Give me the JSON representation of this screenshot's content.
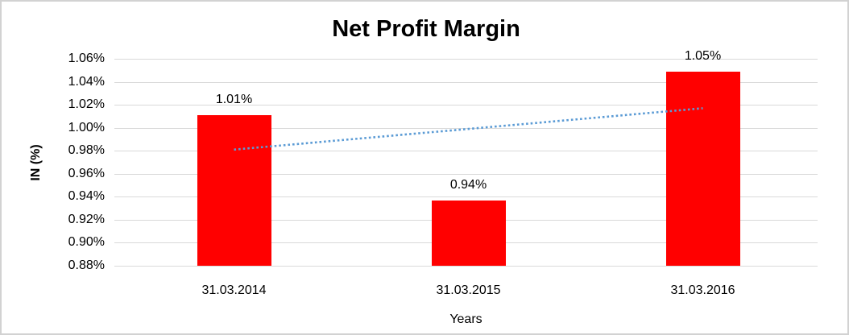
{
  "chart_data": {
    "type": "bar",
    "title": "Net Profit Margin",
    "xlabel": "Years",
    "ylabel": "IN (%)",
    "categories": [
      "31.03.2014",
      "31.03.2015",
      "31.03.2016"
    ],
    "values": [
      1.01,
      0.94,
      1.05
    ],
    "values_precise": [
      1.011,
      0.937,
      1.049
    ],
    "data_labels": [
      "1.01%",
      "0.94%",
      "1.05%"
    ],
    "y_ticks": [
      "1.06%",
      "1.04%",
      "1.02%",
      "1.00%",
      "0.98%",
      "0.96%",
      "0.94%",
      "0.92%",
      "0.90%",
      "0.88%"
    ],
    "ylim": [
      0.88,
      1.06
    ],
    "grid": true,
    "legend_position": "none",
    "colors": {
      "bar": "#ff0000",
      "gridline": "#d9d9d9",
      "text": "#000000",
      "trendline": "#5b9bd5",
      "frame_border": "#d2d2d2",
      "background": "#ffffff"
    },
    "trendline": {
      "type": "linear",
      "style": "dotted",
      "start_value": 0.981,
      "end_value": 1.017
    }
  }
}
